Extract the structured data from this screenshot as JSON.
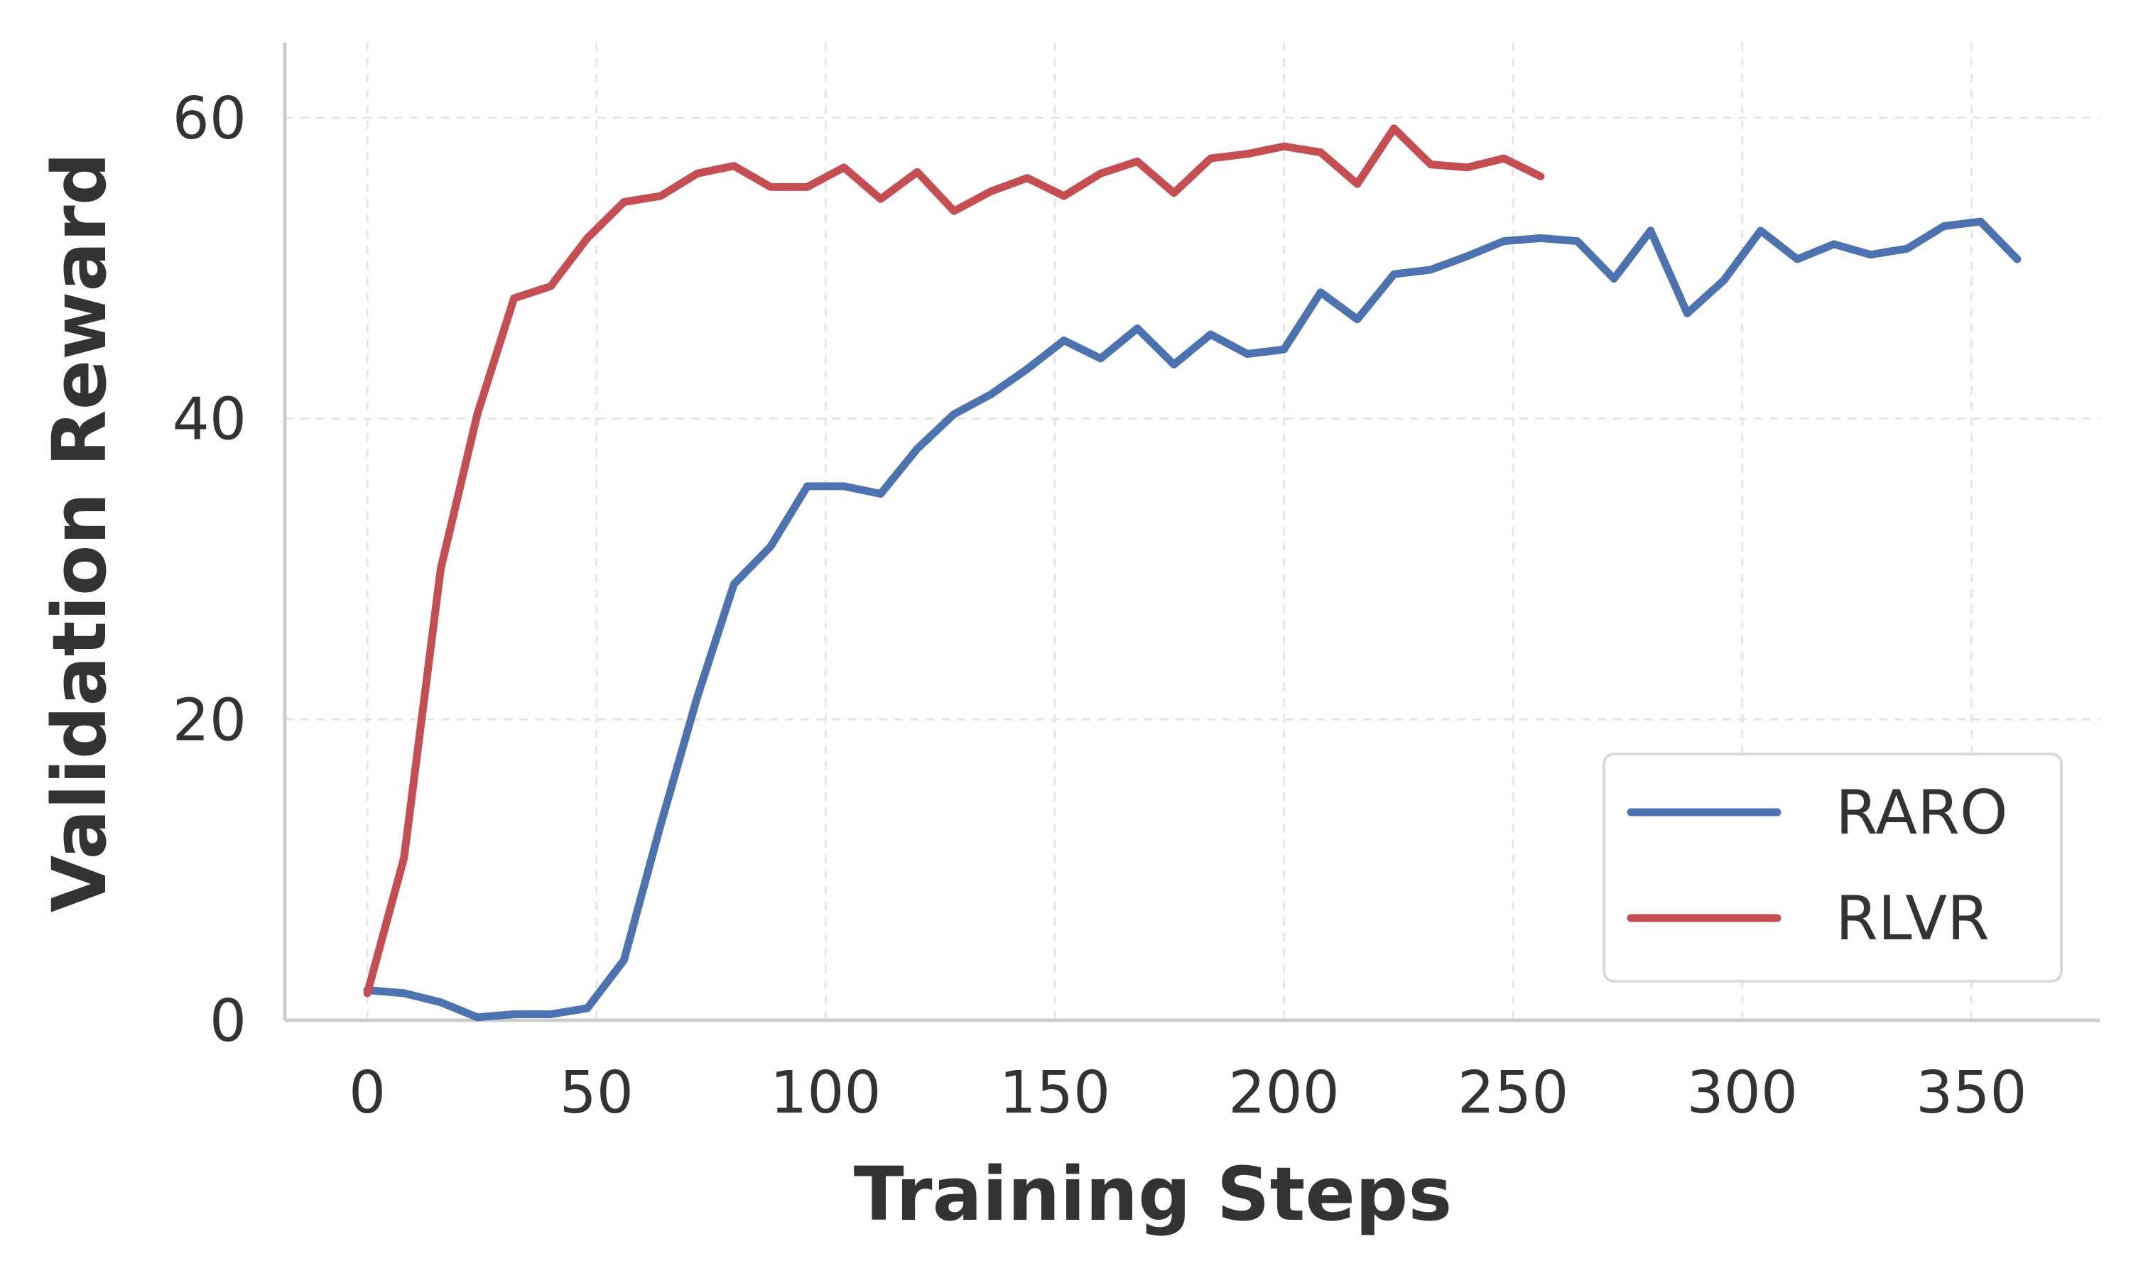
{
  "chart_data": {
    "type": "line",
    "title": "",
    "xlabel": "Training Steps",
    "ylabel": "Validation Reward",
    "xlim": [
      -18,
      378
    ],
    "ylim": [
      0,
      65
    ],
    "xticks": [
      0,
      50,
      100,
      150,
      200,
      250,
      300,
      350
    ],
    "yticks": [
      0,
      20,
      40,
      60
    ],
    "grid": true,
    "legend_position": "lower right",
    "series": [
      {
        "name": "RARO",
        "color": "#4c72b0",
        "x": [
          0,
          8,
          16,
          24,
          32,
          40,
          48,
          56,
          64,
          72,
          80,
          88,
          96,
          104,
          112,
          120,
          128,
          136,
          144,
          152,
          160,
          168,
          176,
          184,
          192,
          200,
          208,
          216,
          224,
          232,
          240,
          248,
          256,
          264,
          272,
          280,
          288,
          296,
          304,
          312,
          320,
          328,
          336,
          344,
          352,
          360
        ],
        "y": [
          2.0,
          1.8,
          1.2,
          0.2,
          0.4,
          0.4,
          0.8,
          4.0,
          13.0,
          21.5,
          29.0,
          31.5,
          35.5,
          35.5,
          35.0,
          38.0,
          40.3,
          41.6,
          43.3,
          45.2,
          44.0,
          46.0,
          43.6,
          45.6,
          44.3,
          44.6,
          48.4,
          46.6,
          49.6,
          49.9,
          50.8,
          51.8,
          52.0,
          51.8,
          49.3,
          52.5,
          47.0,
          49.2,
          52.5,
          50.6,
          51.6,
          50.9,
          51.3,
          52.8,
          53.1,
          50.6
        ]
      },
      {
        "name": "RLVR",
        "color": "#c44e52",
        "x": [
          0,
          8,
          16,
          24,
          32,
          40,
          48,
          56,
          64,
          72,
          80,
          88,
          96,
          104,
          112,
          120,
          128,
          136,
          144,
          152,
          160,
          168,
          176,
          184,
          192,
          200,
          208,
          216,
          224,
          232,
          240,
          248,
          256
        ],
        "y": [
          1.8,
          10.8,
          30.0,
          40.3,
          48.0,
          48.8,
          52.0,
          54.4,
          54.8,
          56.3,
          56.8,
          55.4,
          55.4,
          56.7,
          54.6,
          56.4,
          53.8,
          55.1,
          56.0,
          54.8,
          56.3,
          57.1,
          55.0,
          57.3,
          57.6,
          58.1,
          57.7,
          55.6,
          59.3,
          56.9,
          56.7,
          57.3,
          56.1
        ]
      }
    ]
  }
}
